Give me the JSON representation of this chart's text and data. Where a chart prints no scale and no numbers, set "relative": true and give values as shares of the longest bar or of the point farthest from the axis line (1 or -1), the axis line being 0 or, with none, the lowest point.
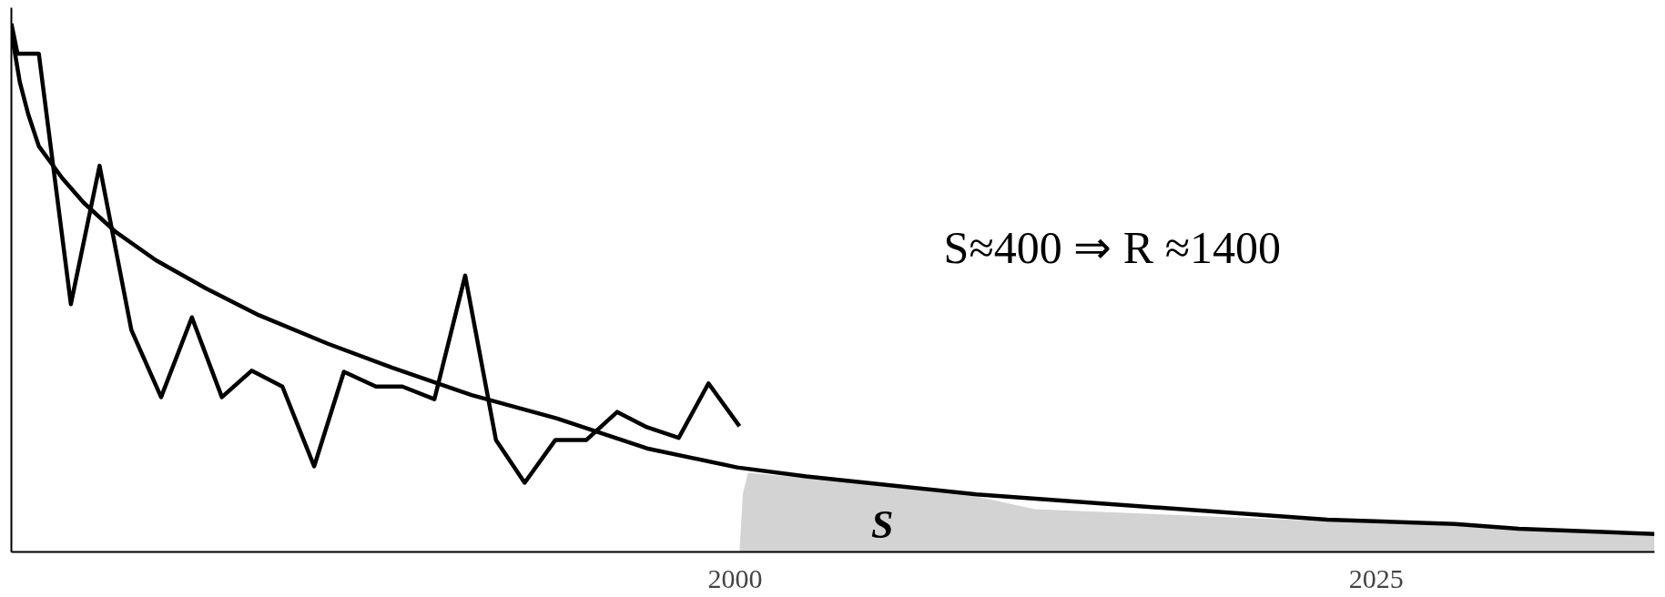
{
  "chart_data": {
    "type": "line",
    "relative": true,
    "xlim": [
      1971.77,
      2035.86
    ],
    "xticks": [
      2000,
      2025
    ],
    "annotations": [
      "S≈400 ⇒ R ≈1400",
      "S"
    ],
    "series": [
      {
        "type": "area",
        "color": "#d3d3d3",
        "x": [
          2000.17,
          2000.3,
          2000.5,
          2002.78,
          2009.41,
          2011.69,
          2023.09,
          2028.07,
          2035.86
        ],
        "values": [
          0,
          0.11,
          0.15,
          0.14,
          0.105,
          0.081,
          0.058,
          0.05,
          0.03
        ]
      },
      {
        "color": "#000000",
        "x": [
          1971.77,
          1972.01,
          1972.84,
          1974.09,
          1975.21,
          1976.45,
          1977.61,
          1978.81,
          1979.98,
          1981.14,
          1982.34,
          1983.58,
          1984.74,
          1985.99,
          1987.02,
          1988.27,
          1989.47,
          1990.67,
          1991.79,
          1992.99,
          1994.2,
          1995.4,
          1996.56,
          1997.8,
          1998.96,
          2000.17
        ],
        "values": [
          1.0,
          0.943,
          0.943,
          0.469,
          0.731,
          0.42,
          0.293,
          0.444,
          0.293,
          0.343,
          0.313,
          0.162,
          0.341,
          0.313,
          0.313,
          0.289,
          0.523,
          0.212,
          0.131,
          0.212,
          0.212,
          0.265,
          0.236,
          0.216,
          0.319,
          0.238
        ]
      },
      {
        "color": "#000000",
        "x": [
          1971.77,
          1972.1,
          1972.43,
          1972.84,
          1973.76,
          1974.59,
          1975.83,
          1977.41,
          1979.35,
          1981.43,
          1984.12,
          1986.61,
          1989.72,
          1993.03,
          1996.56,
          2000.08,
          2002.78,
          2009.41,
          2023.09,
          2028.07,
          2030.56,
          2035.86
        ],
        "values": [
          0.984,
          0.889,
          0.828,
          0.768,
          0.707,
          0.661,
          0.606,
          0.552,
          0.499,
          0.448,
          0.394,
          0.349,
          0.297,
          0.253,
          0.196,
          0.16,
          0.143,
          0.109,
          0.061,
          0.053,
          0.044,
          0.034
        ]
      }
    ]
  }
}
